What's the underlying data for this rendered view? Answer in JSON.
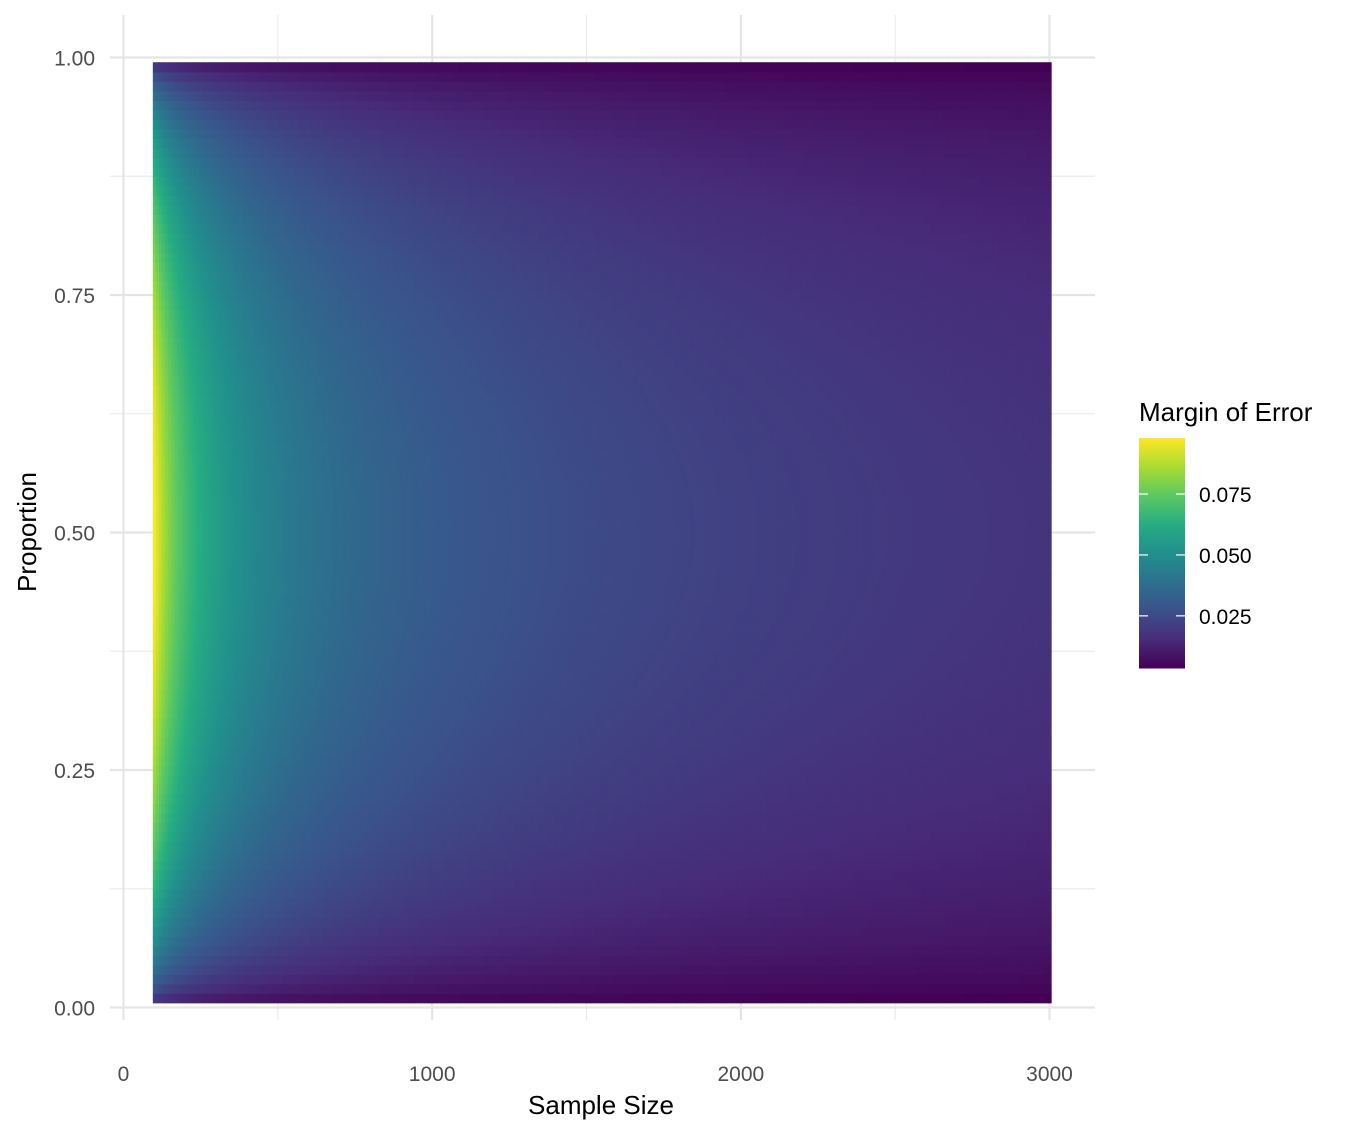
{
  "chart_data": {
    "type": "heatmap",
    "title": "",
    "xlabel": "Sample Size",
    "ylabel": "Proportion",
    "xlim": [
      0,
      3000
    ],
    "ylim": [
      0,
      1
    ],
    "x_ticks": [
      0,
      1000,
      2000,
      3000
    ],
    "x_tick_labels": [
      "0",
      "1000",
      "2000",
      "3000"
    ],
    "y_ticks": [
      0,
      0.25,
      0.5,
      0.75,
      1
    ],
    "y_tick_labels": [
      "0.00",
      "0.25",
      "0.50",
      "0.75",
      "1.00"
    ],
    "x_range": [
      100,
      3000
    ],
    "y_range": [
      0.01,
      0.99
    ],
    "x_step": 10,
    "y_step": 0.01,
    "value_formula": "1.96 * sqrt(p * (1 - p) / n)",
    "value_range": [
      0.0036,
      0.098
    ],
    "grid": true,
    "colormap": "viridis",
    "legend": {
      "title": "Margin of Error",
      "ticks": [
        0.025,
        0.05,
        0.075
      ],
      "tick_labels": [
        "0.025",
        "0.050",
        "0.075"
      ],
      "placement": "right"
    }
  }
}
